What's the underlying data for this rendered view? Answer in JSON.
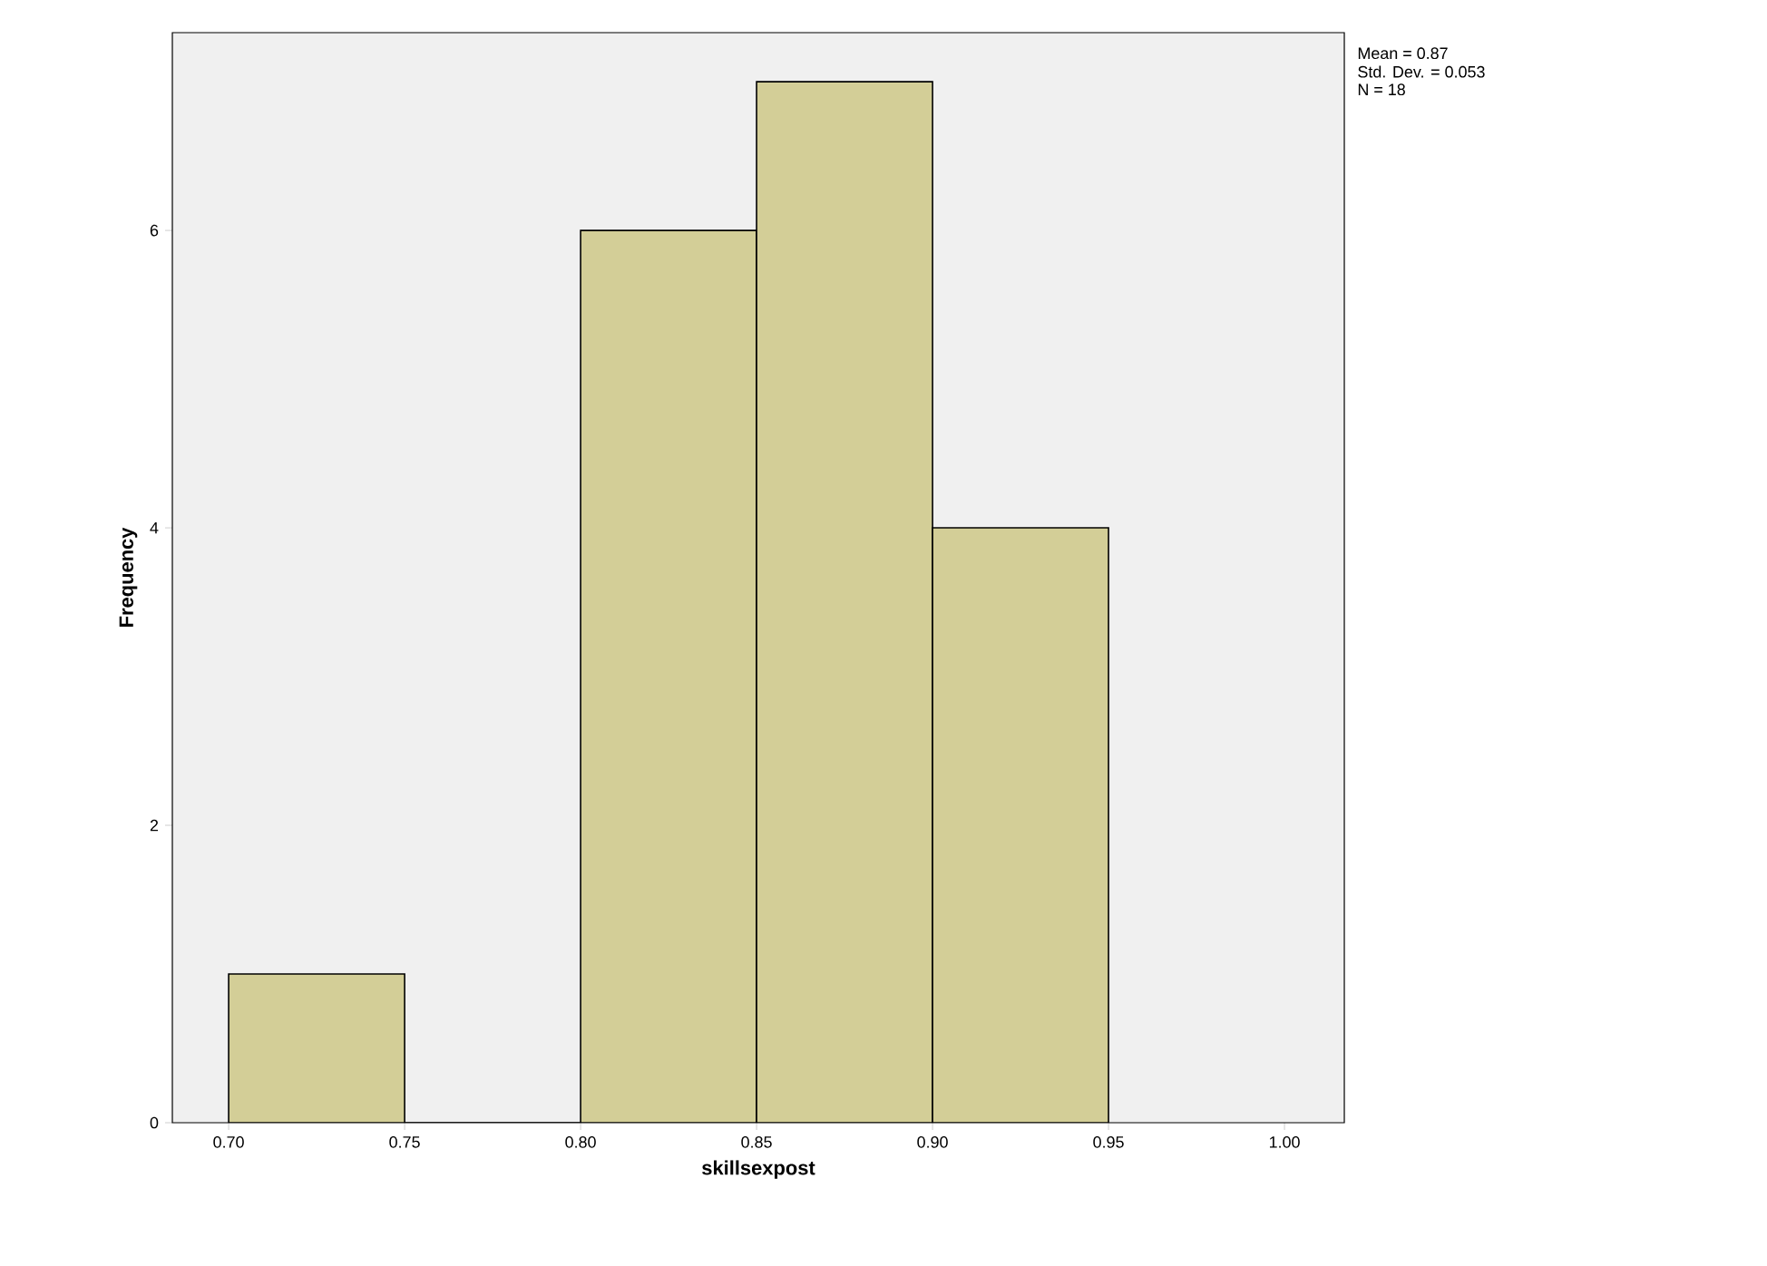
{
  "chart_data": {
    "type": "histogram",
    "xlabel": "skillsexpost",
    "ylabel": "Frequency",
    "bins": [
      0.7,
      0.75,
      0.8,
      0.85,
      0.9,
      0.95
    ],
    "values": [
      1,
      0,
      6,
      7,
      4
    ],
    "color": "#d3ce97",
    "xlim": [
      0.684,
      1.017
    ],
    "xticks": [
      {
        "value": 0.7,
        "label": "0.70"
      },
      {
        "value": 0.75,
        "label": "0.75"
      },
      {
        "value": 0.8,
        "label": "0.80"
      },
      {
        "value": 0.85,
        "label": "0.85"
      },
      {
        "value": 0.9,
        "label": "0.90"
      },
      {
        "value": 0.95,
        "label": "0.95"
      },
      {
        "value": 1.0,
        "label": "1.00"
      }
    ],
    "ylim": [
      0,
      7.33
    ],
    "yticks": [
      0,
      2,
      4,
      6
    ],
    "annotations": [
      "Mean = 0.87",
      "Std. Dev. = 0.053",
      "N = 18"
    ]
  }
}
